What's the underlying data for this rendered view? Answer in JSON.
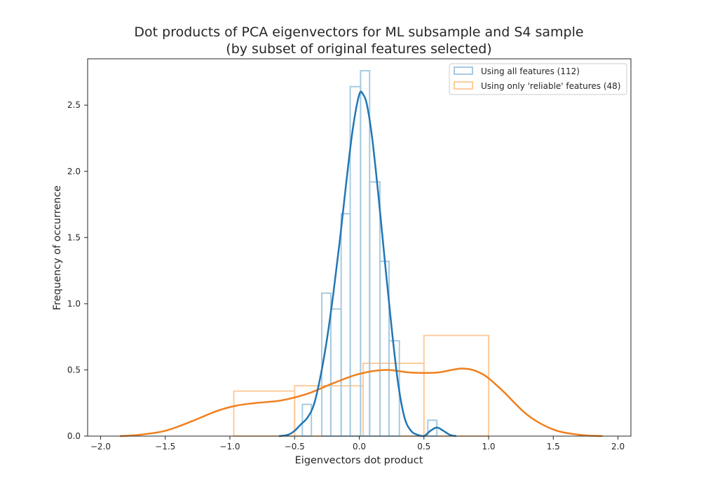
{
  "chart_data": {
    "type": "histogram+kde",
    "title": "Dot products of PCA eigenvectors for ML subsample and S4 sample",
    "subtitle": "(by subset of original features selected)",
    "xlabel": "Eigenvectors dot product",
    "ylabel": "Frequency of occurrence",
    "xlim": [
      -2.1,
      2.1
    ],
    "ylim": [
      0,
      2.85
    ],
    "x_ticks": [
      -2.0,
      -1.5,
      -1.0,
      -0.5,
      0.0,
      0.5,
      1.0,
      1.5,
      2.0
    ],
    "x_tick_labels": [
      "−2.0",
      "−1.5",
      "−1.0",
      "−0.5",
      "0.0",
      "0.5",
      "1.0",
      "1.5",
      "2.0"
    ],
    "y_ticks": [
      0.0,
      0.5,
      1.0,
      1.5,
      2.0,
      2.5
    ],
    "y_tick_labels": [
      "0.0",
      "0.5",
      "1.0",
      "1.5",
      "2.0",
      "2.5"
    ],
    "grid": false,
    "legend_position": "top-right",
    "series": [
      {
        "name": "Using all features (112)",
        "hist_color": "#a6cbe0",
        "kde_color": "#2176b4",
        "hist_bins": [
          {
            "x0": -0.44,
            "x1": -0.37,
            "y": 0.24
          },
          {
            "x0": -0.37,
            "x1": -0.29,
            "y": 0.0
          },
          {
            "x0": -0.29,
            "x1": -0.22,
            "y": 1.08
          },
          {
            "x0": -0.22,
            "x1": -0.14,
            "y": 0.96
          },
          {
            "x0": -0.14,
            "x1": -0.07,
            "y": 1.68
          },
          {
            "x0": -0.07,
            "x1": 0.01,
            "y": 2.64
          },
          {
            "x0": 0.01,
            "x1": 0.08,
            "y": 2.76
          },
          {
            "x0": 0.08,
            "x1": 0.16,
            "y": 1.92
          },
          {
            "x0": 0.16,
            "x1": 0.23,
            "y": 1.32
          },
          {
            "x0": 0.23,
            "x1": 0.31,
            "y": 0.72
          },
          {
            "x0": 0.31,
            "x1": 0.53,
            "y": 0.0
          },
          {
            "x0": 0.53,
            "x1": 0.6,
            "y": 0.12
          }
        ],
        "kde": [
          [
            -0.62,
            0.0
          ],
          [
            -0.55,
            0.01
          ],
          [
            -0.5,
            0.04
          ],
          [
            -0.45,
            0.09
          ],
          [
            -0.4,
            0.14
          ],
          [
            -0.35,
            0.24
          ],
          [
            -0.3,
            0.45
          ],
          [
            -0.25,
            0.73
          ],
          [
            -0.2,
            1.08
          ],
          [
            -0.15,
            1.48
          ],
          [
            -0.1,
            1.92
          ],
          [
            -0.05,
            2.32
          ],
          [
            0.0,
            2.58
          ],
          [
            0.03,
            2.58
          ],
          [
            0.06,
            2.5
          ],
          [
            0.1,
            2.25
          ],
          [
            0.15,
            1.8
          ],
          [
            0.2,
            1.3
          ],
          [
            0.25,
            0.82
          ],
          [
            0.3,
            0.4
          ],
          [
            0.35,
            0.14
          ],
          [
            0.4,
            0.04
          ],
          [
            0.45,
            0.01
          ],
          [
            0.5,
            0.0
          ],
          [
            0.55,
            0.04
          ],
          [
            0.6,
            0.065
          ],
          [
            0.65,
            0.04
          ],
          [
            0.7,
            0.01
          ],
          [
            0.75,
            0.0
          ]
        ]
      },
      {
        "name": "Using only 'reliable' features (48)",
        "hist_color": "#fdcc9d",
        "kde_color": "#f07f1c",
        "hist_bins": [
          {
            "x0": -0.97,
            "x1": -0.5,
            "y": 0.34
          },
          {
            "x0": -0.5,
            "x1": 0.03,
            "y": 0.38
          },
          {
            "x0": 0.03,
            "x1": 0.5,
            "y": 0.55
          },
          {
            "x0": 0.5,
            "x1": 1.0,
            "y": 0.76
          }
        ],
        "kde": [
          [
            -1.85,
            0.0
          ],
          [
            -1.7,
            0.01
          ],
          [
            -1.5,
            0.04
          ],
          [
            -1.3,
            0.11
          ],
          [
            -1.1,
            0.19
          ],
          [
            -0.95,
            0.23
          ],
          [
            -0.8,
            0.25
          ],
          [
            -0.6,
            0.27
          ],
          [
            -0.4,
            0.32
          ],
          [
            -0.2,
            0.4
          ],
          [
            0.0,
            0.47
          ],
          [
            0.2,
            0.5
          ],
          [
            0.4,
            0.48
          ],
          [
            0.6,
            0.48
          ],
          [
            0.8,
            0.51
          ],
          [
            0.95,
            0.47
          ],
          [
            1.1,
            0.35
          ],
          [
            1.3,
            0.16
          ],
          [
            1.5,
            0.05
          ],
          [
            1.7,
            0.01
          ],
          [
            1.88,
            0.0
          ]
        ]
      }
    ]
  }
}
